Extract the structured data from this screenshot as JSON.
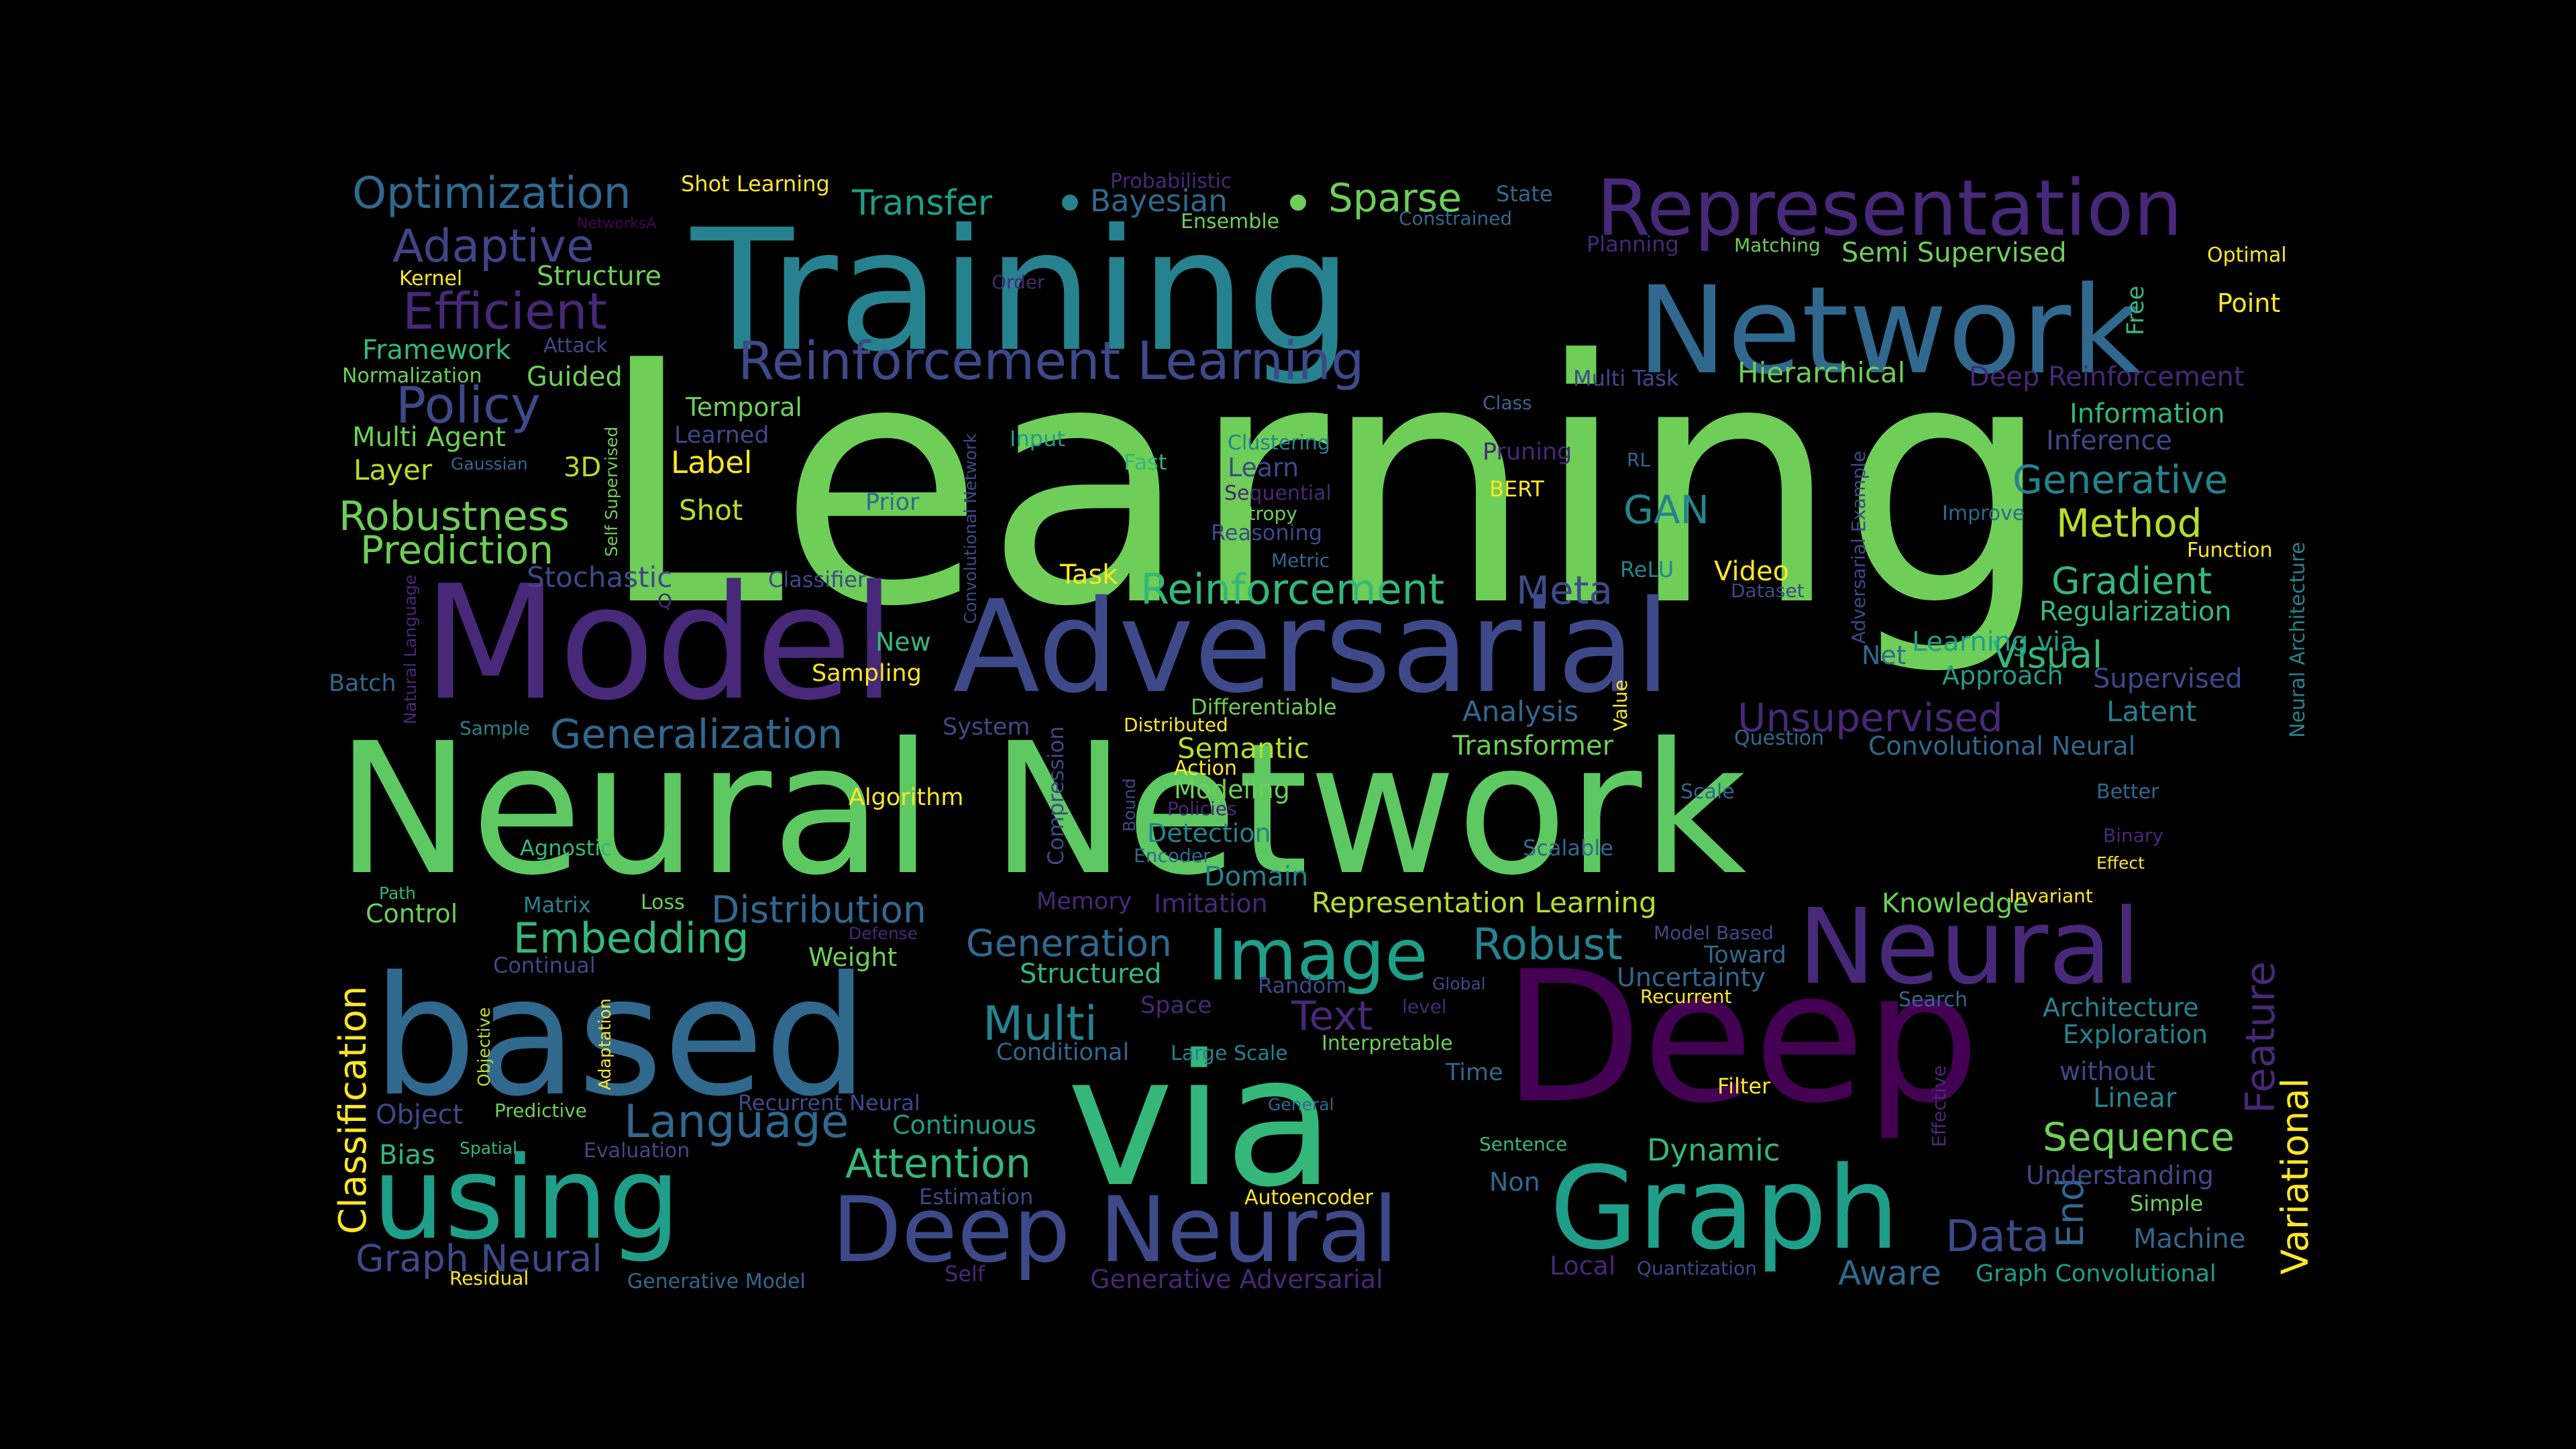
{
  "palette": {
    "background": "#000000",
    "colors": [
      "#440154",
      "#482878",
      "#3e4989",
      "#31688e",
      "#26828e",
      "#1f9e89",
      "#35b779",
      "#6ece58",
      "#b5de2b",
      "#fde725"
    ]
  },
  "words": [
    {
      "text": "Learning",
      "color": "#6ece58"
    },
    {
      "text": "Neural Network",
      "color": "#5ec962"
    },
    {
      "text": "Training",
      "color": "#26828e"
    },
    {
      "text": "Model",
      "color": "#482878"
    },
    {
      "text": "Adversarial",
      "color": "#3e4989"
    },
    {
      "text": "Deep",
      "color": "#440154"
    },
    {
      "text": "based",
      "color": "#31688e"
    },
    {
      "text": "via",
      "color": "#35b779"
    },
    {
      "text": "Network",
      "color": "#31688e"
    },
    {
      "text": "Representation",
      "color": "#482878"
    },
    {
      "text": "using",
      "color": "#1f9e89"
    },
    {
      "text": "Graph",
      "color": "#1f9e89"
    },
    {
      "text": "Deep Neural",
      "color": "#3e4989"
    },
    {
      "text": "Neural",
      "color": "#482878"
    },
    {
      "text": "Image",
      "color": "#1f9e89"
    },
    {
      "text": "Reinforcement Learning",
      "color": "#3e4989"
    },
    {
      "text": "Efficient",
      "color": "#482878"
    },
    {
      "text": "Adaptive",
      "color": "#414487"
    },
    {
      "text": "Optimization",
      "color": "#31688e"
    },
    {
      "text": "Policy",
      "color": "#3e4989"
    },
    {
      "text": "Robustness",
      "color": "#6ece58"
    },
    {
      "text": "Prediction",
      "color": "#6ece58"
    },
    {
      "text": "Reinforcement",
      "color": "#35b779"
    },
    {
      "text": "Generalization",
      "color": "#31688e"
    },
    {
      "text": "Embedding",
      "color": "#35b779"
    },
    {
      "text": "Distribution",
      "color": "#31688e"
    },
    {
      "text": "Generation",
      "color": "#31688e"
    },
    {
      "text": "Robust",
      "color": "#26828e"
    },
    {
      "text": "Language",
      "color": "#31688e"
    },
    {
      "text": "Attention",
      "color": "#35b779"
    },
    {
      "text": "Multi",
      "color": "#26828e"
    },
    {
      "text": "Text",
      "color": "#482878"
    },
    {
      "text": "Classification",
      "color": "#fde725"
    },
    {
      "text": "Graph Neural",
      "color": "#3e4989"
    },
    {
      "text": "Generative",
      "color": "#26828e"
    },
    {
      "text": "Gradient",
      "color": "#35b779"
    },
    {
      "text": "Method",
      "color": "#b5de2b"
    },
    {
      "text": "Unsupervised",
      "color": "#482878"
    },
    {
      "text": "Visual",
      "color": "#35b779"
    },
    {
      "text": "Sequence",
      "color": "#6ece58"
    },
    {
      "text": "Data",
      "color": "#3e4989"
    },
    {
      "text": "Aware",
      "color": "#31688e"
    },
    {
      "text": "Feature",
      "color": "#482878"
    },
    {
      "text": "Variational",
      "color": "#fde725"
    },
    {
      "text": "End",
      "color": "#31688e"
    },
    {
      "text": "Meta",
      "color": "#3e4989"
    },
    {
      "text": "GAN",
      "color": "#26828e"
    },
    {
      "text": "Sparse",
      "color": "#6ece58"
    },
    {
      "text": "Transfer",
      "color": "#1f9e89"
    },
    {
      "text": "Bayesian",
      "color": "#31688e"
    },
    {
      "text": "Dynamic",
      "color": "#35b779"
    },
    {
      "text": "Continuous",
      "color": "#1f9e89"
    },
    {
      "text": "Knowledge",
      "color": "#6ece58"
    },
    {
      "text": "Structure",
      "color": "#6ece58"
    },
    {
      "text": "Framework",
      "color": "#35b779"
    },
    {
      "text": "Guided",
      "color": "#6ece58"
    },
    {
      "text": "Stochastic",
      "color": "#3e4989"
    },
    {
      "text": "Multi Agent",
      "color": "#6ece58"
    },
    {
      "text": "Layer",
      "color": "#b5de2b"
    },
    {
      "text": "Label",
      "color": "#fde725"
    },
    {
      "text": "Shot",
      "color": "#b5de2b"
    },
    {
      "text": "Temporal",
      "color": "#6ece58"
    },
    {
      "text": "Learned",
      "color": "#3e4989"
    },
    {
      "text": "3D",
      "color": "#b5de2b"
    },
    {
      "text": "Object",
      "color": "#3e4989"
    },
    {
      "text": "Bias",
      "color": "#35b779"
    },
    {
      "text": "Control",
      "color": "#6ece58"
    },
    {
      "text": "Semi Supervised",
      "color": "#6ece58"
    },
    {
      "text": "Hierarchical",
      "color": "#6ece58"
    },
    {
      "text": "Deep Reinforcement",
      "color": "#482878"
    },
    {
      "text": "Information",
      "color": "#35b779"
    },
    {
      "text": "Inference",
      "color": "#3e4989"
    },
    {
      "text": "Point",
      "color": "#fde725"
    },
    {
      "text": "Regularization",
      "color": "#35b779"
    },
    {
      "text": "Latent",
      "color": "#26828e"
    },
    {
      "text": "Convolutional Neural",
      "color": "#31688e"
    },
    {
      "text": "Supervised",
      "color": "#3e4989"
    },
    {
      "text": "Approach",
      "color": "#1f9e89"
    },
    {
      "text": "Learning via",
      "color": "#1f9e89"
    },
    {
      "text": "Transformer",
      "color": "#6ece58"
    },
    {
      "text": "Analysis",
      "color": "#31688e"
    },
    {
      "text": "Video",
      "color": "#fde725"
    },
    {
      "text": "Semantic",
      "color": "#b5de2b"
    },
    {
      "text": "Modeling",
      "color": "#6ece58"
    },
    {
      "text": "Detection",
      "color": "#26828e"
    },
    {
      "text": "Domain",
      "color": "#26828e"
    },
    {
      "text": "Representation Learning",
      "color": "#b5de2b"
    },
    {
      "text": "Imitation",
      "color": "#482878"
    },
    {
      "text": "Structured",
      "color": "#35b779"
    },
    {
      "text": "Conditional",
      "color": "#31688e"
    },
    {
      "text": "Large Scale",
      "color": "#26828e"
    },
    {
      "text": "Recurrent Neural",
      "color": "#3e4989"
    },
    {
      "text": "Generative Model",
      "color": "#31688e"
    },
    {
      "text": "Generative Adversarial",
      "color": "#482878"
    },
    {
      "text": "Architecture",
      "color": "#26828e"
    },
    {
      "text": "Exploration",
      "color": "#26828e"
    },
    {
      "text": "without",
      "color": "#3e4989"
    },
    {
      "text": "Linear",
      "color": "#26828e"
    },
    {
      "text": "Understanding",
      "color": "#3e4989"
    },
    {
      "text": "Machine",
      "color": "#31688e"
    },
    {
      "text": "Simple",
      "color": "#6ece58"
    },
    {
      "text": "Graph Convolutional",
      "color": "#1f9e89"
    },
    {
      "text": "Uncertainty",
      "color": "#31688e"
    },
    {
      "text": "Toward",
      "color": "#31688e"
    },
    {
      "text": "Memory",
      "color": "#482878"
    },
    {
      "text": "Weight",
      "color": "#6ece58"
    },
    {
      "text": "Sampling",
      "color": "#fde725"
    },
    {
      "text": "New",
      "color": "#35b779"
    },
    {
      "text": "Task",
      "color": "#fde725"
    },
    {
      "text": "Prior",
      "color": "#31688e"
    },
    {
      "text": "Input",
      "color": "#1f9e89"
    },
    {
      "text": "Fast",
      "color": "#35b779"
    },
    {
      "text": "Learn",
      "color": "#3e4989"
    },
    {
      "text": "Clustering",
      "color": "#26828e"
    },
    {
      "text": "Sequential",
      "color": "#482878"
    },
    {
      "text": "Entropy",
      "color": "#6ece58"
    },
    {
      "text": "Reasoning",
      "color": "#3e4989"
    },
    {
      "text": "Metric",
      "color": "#31688e"
    },
    {
      "text": "ReLU",
      "color": "#26828e"
    },
    {
      "text": "Dataset",
      "color": "#3e4989"
    },
    {
      "text": "Net",
      "color": "#31688e"
    },
    {
      "text": "Pruning",
      "color": "#482878"
    },
    {
      "text": "BERT",
      "color": "#fde725"
    },
    {
      "text": "RL",
      "color": "#31688e"
    },
    {
      "text": "Class",
      "color": "#31688e"
    },
    {
      "text": "Multi Task",
      "color": "#3e4989"
    },
    {
      "text": "Planning",
      "color": "#482878"
    },
    {
      "text": "Matching",
      "color": "#6ece58"
    },
    {
      "text": "Optimal",
      "color": "#fde725"
    },
    {
      "text": "Free",
      "color": "#35b779"
    },
    {
      "text": "Improve",
      "color": "#31688e"
    },
    {
      "text": "Function",
      "color": "#fde725"
    },
    {
      "text": "State",
      "color": "#31688e"
    },
    {
      "text": "Constrained",
      "color": "#31688e"
    },
    {
      "text": "Ensemble",
      "color": "#6ece58"
    },
    {
      "text": "Probabilistic",
      "color": "#482878"
    },
    {
      "text": "Shot Learning",
      "color": "#fde725"
    },
    {
      "text": "NetworksA",
      "color": "#440154"
    },
    {
      "text": "Kernel",
      "color": "#fde725"
    },
    {
      "text": "Attack",
      "color": "#3e4989"
    },
    {
      "text": "Normalization",
      "color": "#6ece58"
    },
    {
      "text": "Order",
      "color": "#482878"
    },
    {
      "text": "Gaussian",
      "color": "#31688e"
    },
    {
      "text": "Self Supervised",
      "color": "#6ece58"
    },
    {
      "text": "Natural Language",
      "color": "#482878"
    },
    {
      "text": "Q",
      "color": "#482878"
    },
    {
      "text": "Batch",
      "color": "#31688e"
    },
    {
      "text": "Sample",
      "color": "#26828e"
    },
    {
      "text": "Classifier",
      "color": "#3e4989"
    },
    {
      "text": "System",
      "color": "#3e4989"
    },
    {
      "text": "Distributed",
      "color": "#fde725"
    },
    {
      "text": "Differentiable",
      "color": "#6ece58"
    },
    {
      "text": "Action",
      "color": "#fde725"
    },
    {
      "text": "Algorithm",
      "color": "#fde725"
    },
    {
      "text": "Policies",
      "color": "#482878"
    },
    {
      "text": "Encoder",
      "color": "#31688e"
    },
    {
      "text": "Agnostic",
      "color": "#35b779"
    },
    {
      "text": "Path",
      "color": "#35b779"
    },
    {
      "text": "Matrix",
      "color": "#26828e"
    },
    {
      "text": "Loss",
      "color": "#6ece58"
    },
    {
      "text": "Defense",
      "color": "#482878"
    },
    {
      "text": "Continual",
      "color": "#3e4989"
    },
    {
      "text": "Objective",
      "color": "#b5de2b"
    },
    {
      "text": "Adaptation",
      "color": "#fde725"
    },
    {
      "text": "Predictive",
      "color": "#6ece58"
    },
    {
      "text": "Spatial",
      "color": "#35b779"
    },
    {
      "text": "Evaluation",
      "color": "#3e4989"
    },
    {
      "text": "Residual",
      "color": "#fde725"
    },
    {
      "text": "Self",
      "color": "#482878"
    },
    {
      "text": "Estimation",
      "color": "#3e4989"
    },
    {
      "text": "Autoencoder",
      "color": "#fde725"
    },
    {
      "text": "General",
      "color": "#31688e"
    },
    {
      "text": "Interpretable",
      "color": "#6ece58"
    },
    {
      "text": "Time",
      "color": "#31688e"
    },
    {
      "text": "Random",
      "color": "#3e4989"
    },
    {
      "text": "Space",
      "color": "#482878"
    },
    {
      "text": "Global",
      "color": "#3e4989"
    },
    {
      "text": "level",
      "color": "#482878"
    },
    {
      "text": "Non",
      "color": "#31688e"
    },
    {
      "text": "Sentence",
      "color": "#35b779"
    },
    {
      "text": "Local",
      "color": "#482878"
    },
    {
      "text": "Quantization",
      "color": "#3e4989"
    },
    {
      "text": "Filter",
      "color": "#fde725"
    },
    {
      "text": "Recurrent",
      "color": "#fde725"
    },
    {
      "text": "Model Based",
      "color": "#3e4989"
    },
    {
      "text": "Effective",
      "color": "#482878"
    },
    {
      "text": "Search",
      "color": "#31688e"
    },
    {
      "text": "Invariant",
      "color": "#fde725"
    },
    {
      "text": "Effect",
      "color": "#fde725"
    },
    {
      "text": "Binary",
      "color": "#482878"
    },
    {
      "text": "Better",
      "color": "#31688e"
    },
    {
      "text": "Scalable",
      "color": "#31688e"
    },
    {
      "text": "Scale",
      "color": "#31688e"
    },
    {
      "text": "Question",
      "color": "#31688e"
    },
    {
      "text": "Value",
      "color": "#fde725"
    },
    {
      "text": "Adversarial Example",
      "color": "#3e4989"
    },
    {
      "text": "Neural Architecture",
      "color": "#26828e"
    },
    {
      "text": "Convolutional Network",
      "color": "#3e4989"
    },
    {
      "text": "Compression",
      "color": "#3e4989"
    },
    {
      "text": "Bound",
      "color": "#3e4989"
    }
  ]
}
